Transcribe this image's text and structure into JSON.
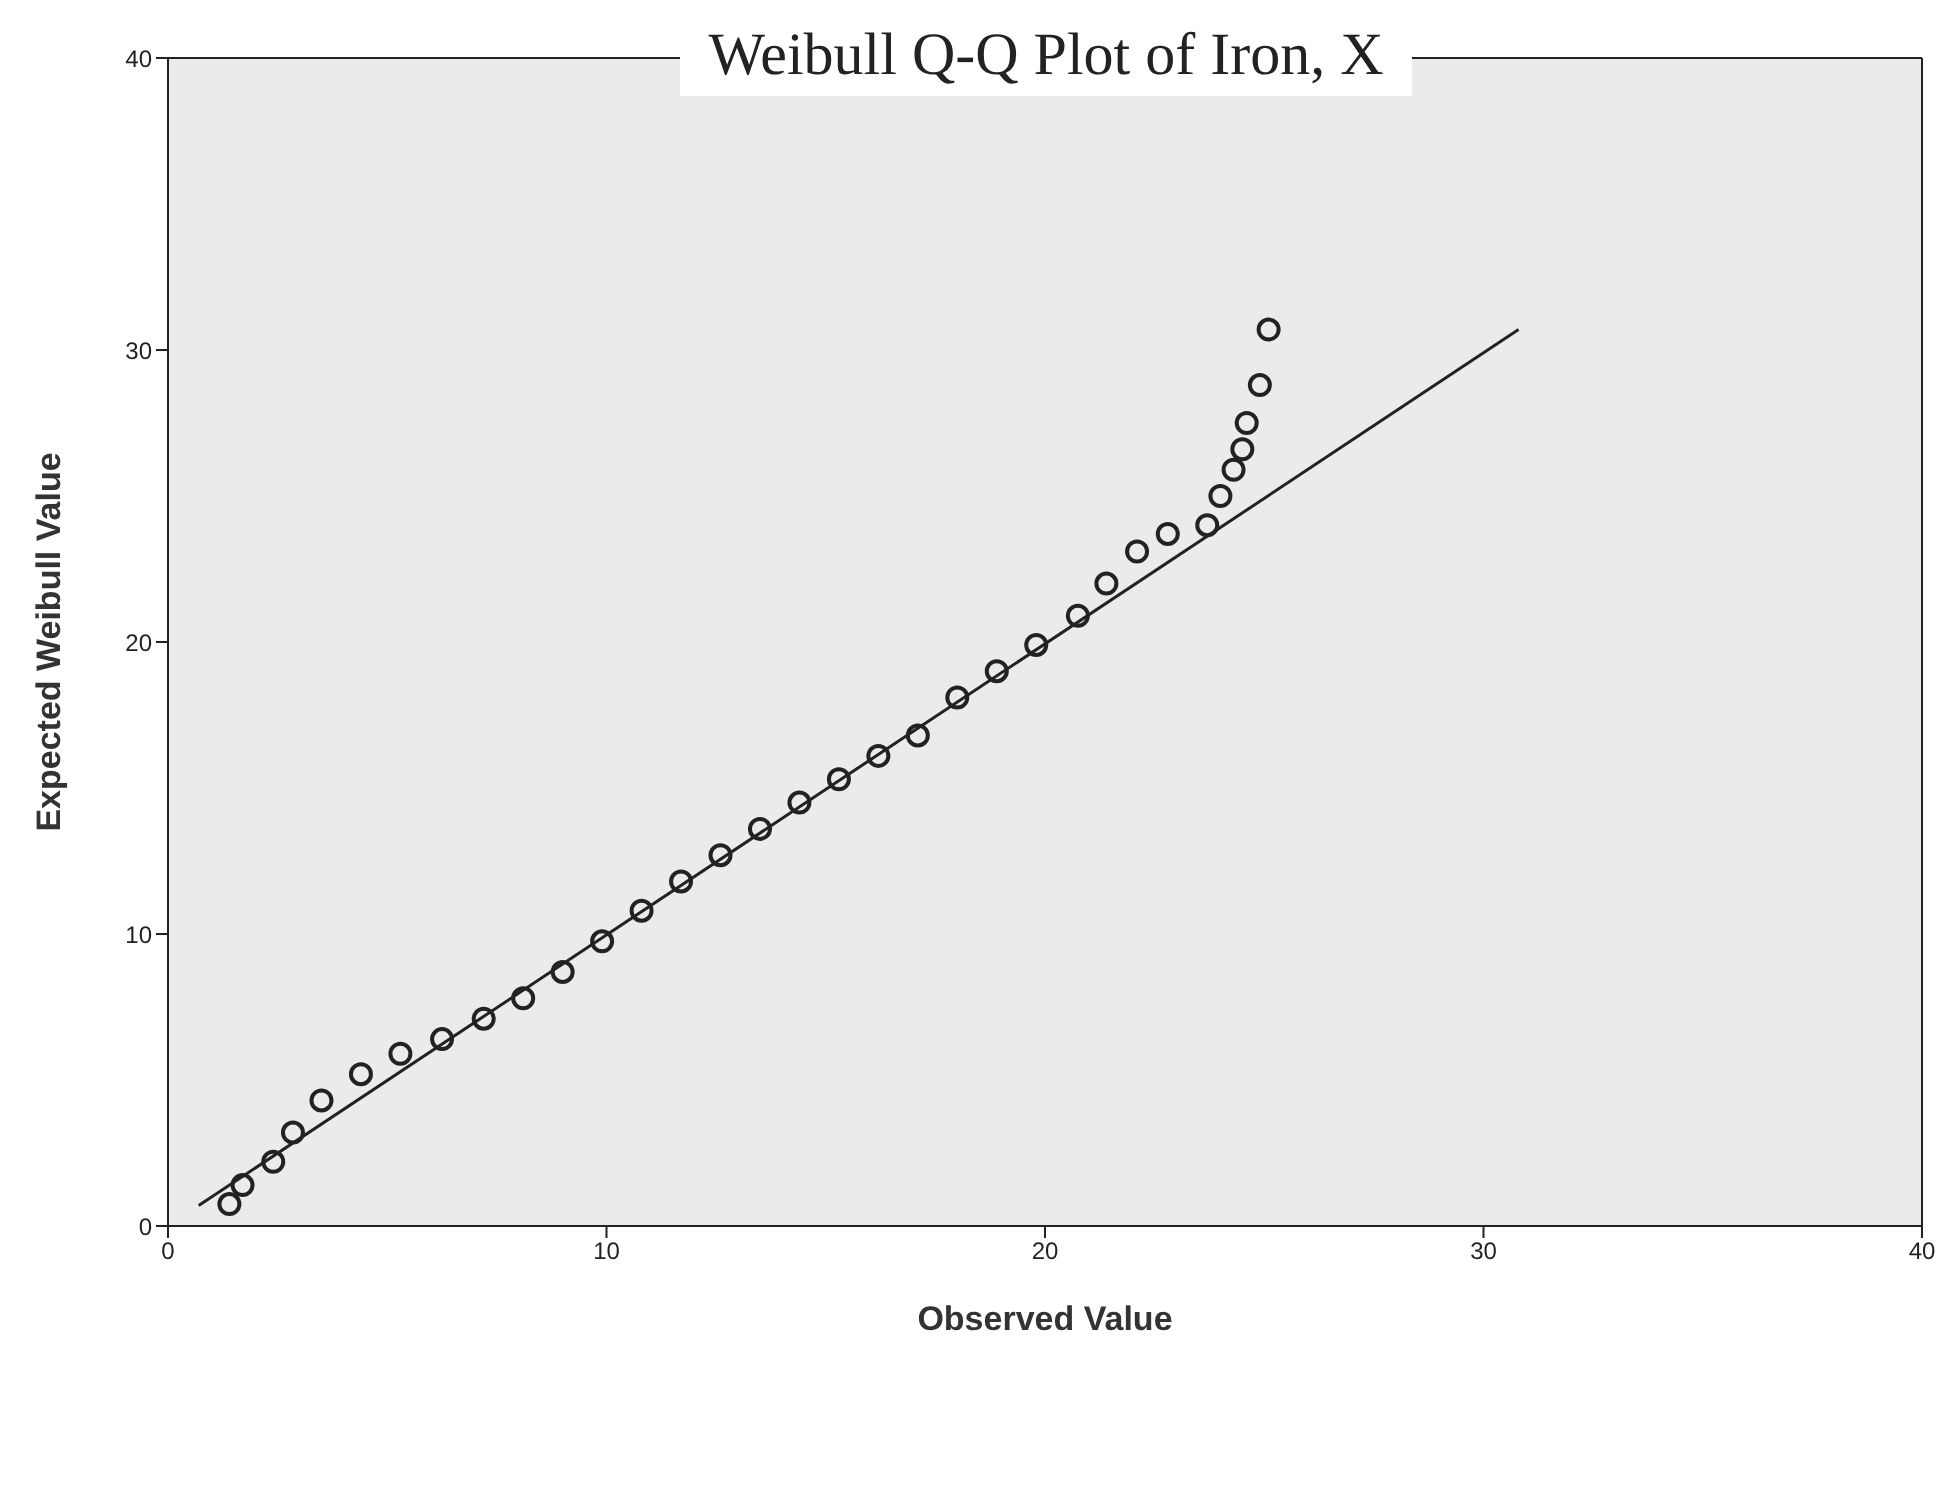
{
  "chart_data": {
    "type": "scatter",
    "title": "Weibull Q-Q Plot of Iron, X",
    "xlabel": "Observed Value",
    "ylabel": "Expected Weibull Value",
    "xlim": [
      0,
      40
    ],
    "ylim": [
      0,
      40
    ],
    "xticks": [
      0,
      10,
      20,
      30,
      40
    ],
    "yticks": [
      0,
      10,
      20,
      30,
      40
    ],
    "grid": false,
    "legend": false,
    "series": [
      {
        "marker": "circle",
        "color": "#222222",
        "x": [
          1.4,
          1.7,
          2.4,
          2.85,
          3.5,
          4.4,
          5.3,
          6.25,
          7.2,
          8.1,
          9.0,
          9.9,
          10.8,
          11.7,
          12.6,
          13.5,
          14.4,
          15.3,
          16.2,
          17.1,
          18.0,
          18.9,
          19.8,
          20.75,
          21.4,
          22.1,
          22.8,
          23.7,
          24.0,
          24.3,
          24.5,
          24.6,
          24.9,
          25.1
        ],
        "values": [
          0.75,
          1.4,
          2.2,
          3.2,
          4.3,
          5.2,
          5.9,
          6.4,
          7.1,
          7.8,
          8.7,
          9.75,
          10.8,
          11.8,
          12.7,
          13.6,
          14.5,
          15.3,
          16.1,
          16.8,
          18.1,
          19.0,
          19.9,
          20.9,
          22.0,
          23.1,
          23.7,
          24.0,
          25.0,
          25.9,
          26.6,
          27.5,
          28.8,
          30.7
        ]
      },
      {
        "type": "line",
        "color": "#222222",
        "x": [
          0.7,
          30.8
        ],
        "values": [
          0.7,
          30.7
        ]
      }
    ]
  }
}
